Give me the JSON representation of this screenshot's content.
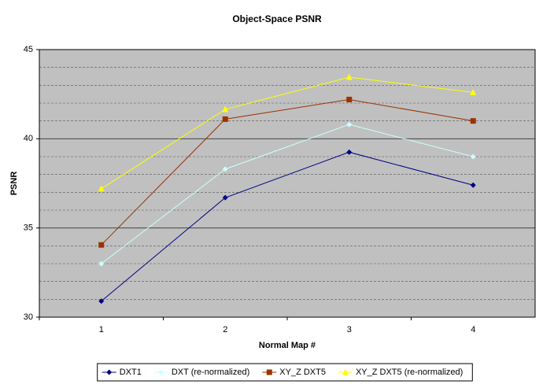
{
  "chart_data": {
    "type": "line",
    "title": "Object-Space PSNR",
    "x_label": "Normal Map #",
    "y_label": "PSNR",
    "categories": [
      "1",
      "2",
      "3",
      "4"
    ],
    "series": [
      {
        "name": "DXT1",
        "color": "#000080",
        "marker": "diamond",
        "values": [
          30.9,
          36.7,
          39.25,
          37.4
        ]
      },
      {
        "name": "DXT (re-normalized)",
        "color": "#ccffff",
        "marker": "diamond",
        "values": [
          33.0,
          38.3,
          40.8,
          39.0
        ]
      },
      {
        "name": "XY_Z DXT5",
        "color": "#993300",
        "marker": "square",
        "values": [
          34.05,
          41.1,
          42.2,
          41.0
        ]
      },
      {
        "name": "XY_Z DXT5 (re-normalized)",
        "color": "#ffff00",
        "marker": "triangle",
        "values": [
          37.2,
          41.65,
          43.45,
          42.6
        ]
      }
    ],
    "ylim": [
      30,
      45
    ],
    "yticks": [
      30,
      35,
      40,
      45
    ],
    "grid": true,
    "legend": "bottom"
  }
}
